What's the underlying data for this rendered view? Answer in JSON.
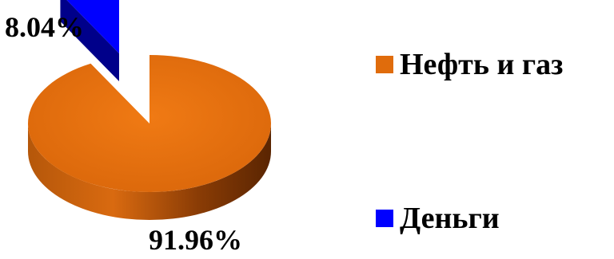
{
  "chart_data": {
    "type": "pie",
    "style": "3d-exploded",
    "categories": [
      "Нефть и газ",
      "Деньги"
    ],
    "values": [
      91.96,
      8.04
    ],
    "value_labels": [
      "91.96%",
      "8.04%"
    ],
    "unit": "%",
    "colors": [
      "#e06c0c",
      "#0000ff"
    ],
    "legend_position": "right",
    "title": ""
  }
}
